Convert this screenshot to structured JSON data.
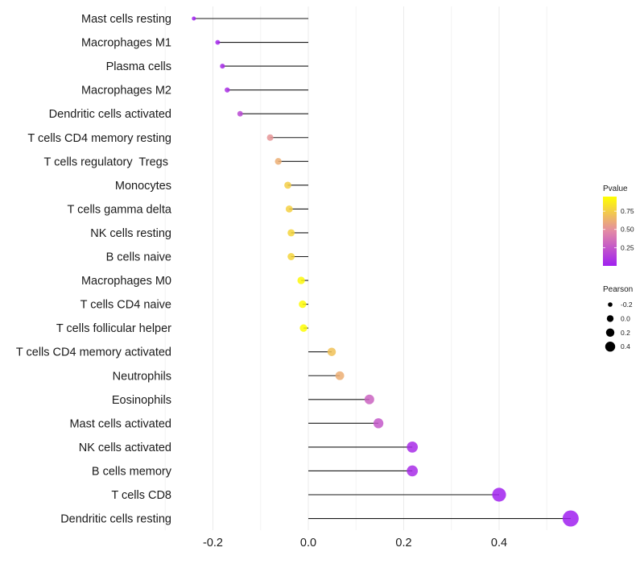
{
  "chart_data": {
    "type": "lollipop",
    "title": "",
    "xlabel": "",
    "ylabel": "",
    "xlim": [
      -0.245,
      0.555
    ],
    "x_ticks": [
      -0.2,
      0.0,
      0.2,
      0.4
    ],
    "x_tick_labels": [
      "-0.2",
      "0.0",
      "0.2",
      "0.4"
    ],
    "grid": true,
    "categories": [
      "Mast cells resting",
      "Macrophages M1",
      "Plasma cells",
      "Macrophages M2",
      "Dendritic cells activated",
      "T cells CD4 memory resting",
      "T cells regulatory  Tregs ",
      "Monocytes",
      "T cells gamma delta",
      "NK cells resting",
      "B cells naive",
      "Macrophages M0",
      "T cells CD4 naive",
      "T cells follicular helper",
      "T cells CD4 memory activated",
      "Neutrophils",
      "Eosinophils",
      "Mast cells activated",
      "NK cells activated",
      "B cells memory",
      "T cells CD8",
      "Dendritic cells resting"
    ],
    "pearson": [
      -0.24,
      -0.19,
      -0.18,
      -0.17,
      -0.143,
      -0.08,
      -0.063,
      -0.043,
      -0.04,
      -0.036,
      -0.036,
      -0.015,
      -0.012,
      -0.01,
      0.049,
      0.066,
      0.128,
      0.147,
      0.218,
      0.218,
      0.4,
      0.55
    ],
    "pvalue": [
      0.0,
      0.03,
      0.05,
      0.07,
      0.18,
      0.52,
      0.62,
      0.75,
      0.76,
      0.78,
      0.78,
      0.92,
      0.93,
      0.94,
      0.7,
      0.62,
      0.3,
      0.25,
      0.06,
      0.06,
      0.01,
      0.0
    ],
    "legend": {
      "color": {
        "title": "Pvalue",
        "breaks": [
          0.25,
          0.5,
          0.75
        ],
        "labels": [
          "0.25",
          "0.50",
          "0.75"
        ],
        "range": [
          0.0,
          0.95
        ],
        "low_color": "#A020F0",
        "mid_color": "#E38AA6",
        "high_color": "#FFFF00"
      },
      "size": {
        "title": "Pearson",
        "breaks": [
          -0.2,
          0.0,
          0.2,
          0.4
        ],
        "labels": [
          "-0.2",
          "0.0",
          "0.2",
          "0.4"
        ]
      },
      "placement": "right"
    }
  }
}
